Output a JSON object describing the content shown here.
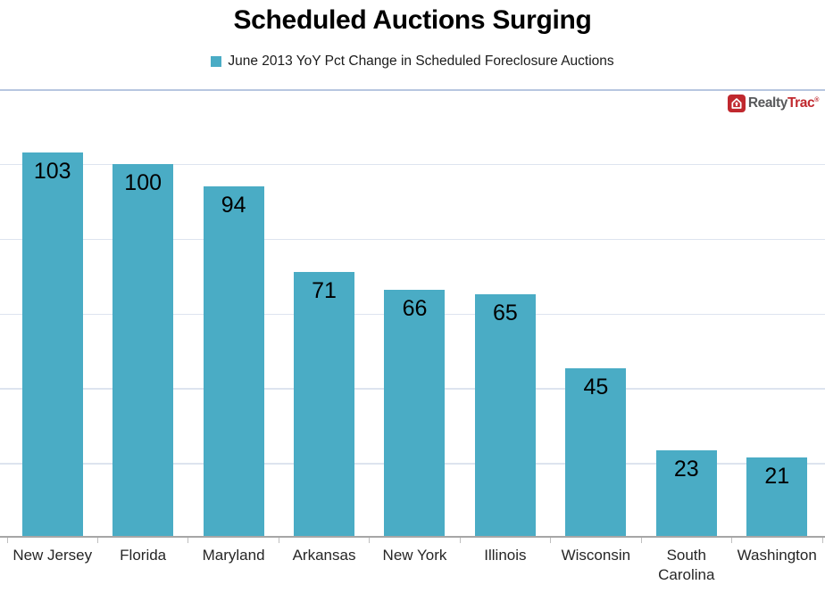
{
  "header": {
    "title": "Scheduled Auctions Surging",
    "legend_label": "June 2013 YoY Pct Change in Scheduled Foreclosure Auctions"
  },
  "branding": {
    "logo_text_1": "Realty",
    "logo_text_2": "Trac",
    "registered_mark": "®"
  },
  "colors": {
    "bar": "#4aacc5",
    "grid_line": "#dde4ef",
    "border_line": "#b7c6e0",
    "axis_line": "#a6a6a6",
    "tick": "#bfbfbf",
    "logo_red": "#c0282e",
    "logo_gray": "#58595b"
  },
  "chart_data": {
    "type": "bar",
    "title": "Scheduled Auctions Surging",
    "legend": [
      "June 2013 YoY Pct Change in Scheduled Foreclosure Auctions"
    ],
    "legend_position": "top",
    "categories": [
      "New Jersey",
      "Florida",
      "Maryland",
      "Arkansas",
      "New York",
      "Illinois",
      "Wisconsin",
      "South Carolina",
      "Washington"
    ],
    "values": [
      103,
      100,
      94,
      71,
      66,
      65,
      45,
      23,
      21
    ],
    "xlabel": "",
    "ylabel": "",
    "ylim": [
      0,
      120
    ],
    "grid_interval": 20,
    "grid": "horizontal",
    "y_axis_tick_labels_visible": false,
    "data_labels_position": "inside-top"
  }
}
